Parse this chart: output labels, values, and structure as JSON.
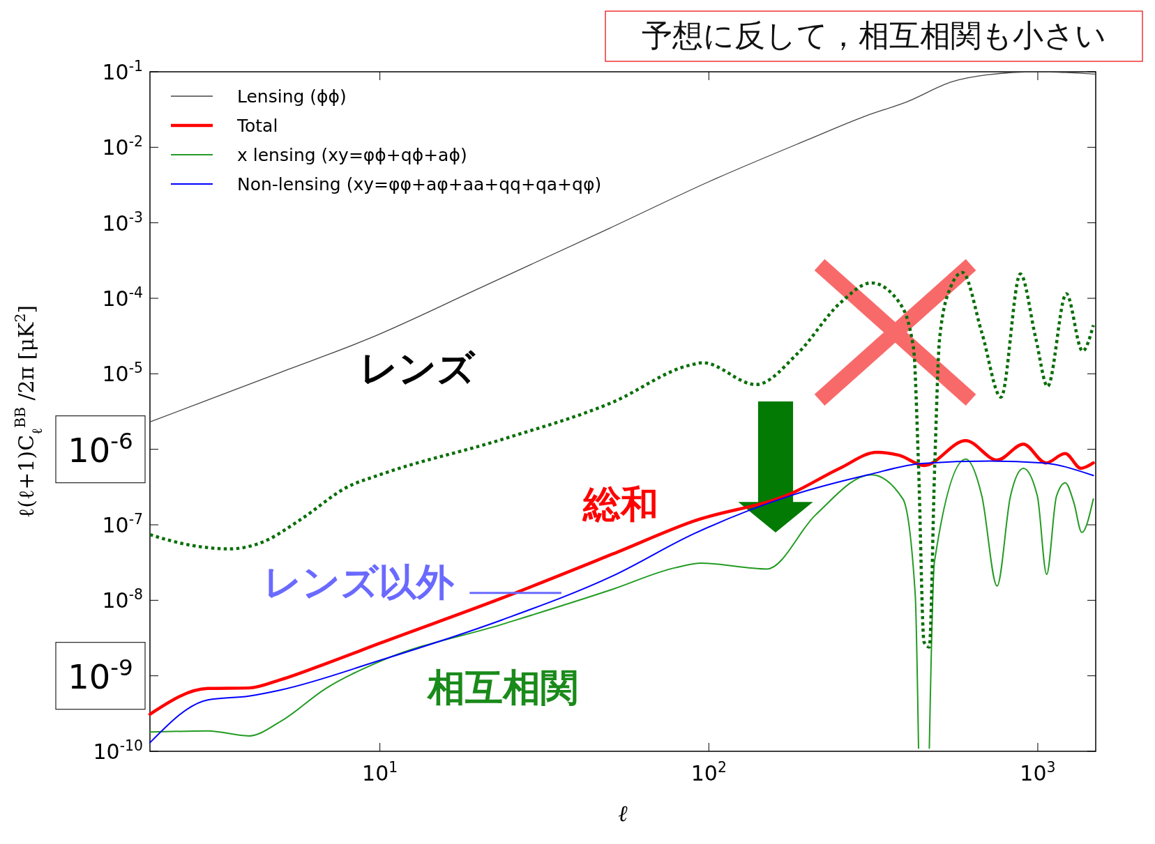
{
  "chart_data": {
    "type": "line",
    "xlabel": "ℓ",
    "ylabel": "ℓ(ℓ+1)C$_{ℓ}$$^{BB}$ /2π [μK$^{2}$]",
    "log": "xy",
    "xlim": [
      2,
      1500
    ],
    "ylim": [
      1e-10,
      0.1
    ],
    "xticks": [
      {
        "value": 10,
        "label": "10$^{1}$"
      },
      {
        "value": 100,
        "label": "10$^{2}$"
      },
      {
        "value": 1000,
        "label": "10$^{3}$"
      }
    ],
    "yticks": [
      {
        "value": 1e-10,
        "label": "10$^{-10}$"
      },
      {
        "value": 1e-09,
        "label": null
      },
      {
        "value": 1e-08,
        "label": "10$^{-8}$"
      },
      {
        "value": 1e-07,
        "label": "10$^{-7}$"
      },
      {
        "value": 1e-06,
        "label": null
      },
      {
        "value": 1e-05,
        "label": "10$^{-5}$"
      },
      {
        "value": 0.0001,
        "label": "10$^{-4}$"
      },
      {
        "value": 0.001,
        "label": "10$^{-3}$"
      },
      {
        "value": 0.01,
        "label": "10$^{-2}$"
      },
      {
        "value": 0.1,
        "label": "10$^{-1}$"
      }
    ],
    "legend": "top left",
    "grid": false,
    "series": [
      {
        "name": "Lensing (ϕϕ)",
        "color": "#444444",
        "x": [
          2,
          3,
          5,
          9.3,
          20,
          50,
          100,
          200,
          300,
          400,
          550,
          700,
          1000,
          1500
        ],
        "values": [
          2.3e-06,
          4.5e-06,
          1.05e-05,
          2.95e-05,
          0.000135,
          0.00085,
          0.0035,
          0.0126,
          0.026,
          0.04,
          0.074,
          0.091,
          0.1,
          0.093
        ]
      },
      {
        "name": "Total",
        "color": "#ff0000",
        "x": [
          2,
          3,
          4,
          5,
          7,
          10,
          23.5,
          51,
          90,
          178,
          250,
          324,
          380,
          451,
          604,
          753,
          904,
          1059,
          1212,
          1352,
          1475
        ],
        "values": [
          3.1e-10,
          6.8e-10,
          6.9e-10,
          8.9e-10,
          1.5e-09,
          2.7e-09,
          1.07e-08,
          4.1e-08,
          1.12e-07,
          2.6e-07,
          5.6e-07,
          9.1e-07,
          8.3e-07,
          6.1e-07,
          1.3e-06,
          7.2e-07,
          1.17e-06,
          6.6e-07,
          8.8e-07,
          5.6e-07,
          6.6e-07
        ]
      },
      {
        "name": "x lensing (xy=φϕ+qϕ+aϕ)",
        "color": "#239b23",
        "x": [
          2,
          3,
          4,
          5,
          6.85,
          10,
          23.5,
          51,
          79,
          95,
          150,
          211,
          312,
          389,
          424,
          434,
          450,
          468,
          485,
          604,
          676,
          752,
          826,
          904,
          997,
          1064,
          1140,
          1212,
          1288,
          1361,
          1475
        ],
        "values": [
          1.8e-10,
          1.86e-10,
          1.6e-10,
          2.5e-10,
          6.8e-10,
          1.55e-09,
          4.8e-09,
          1.4e-08,
          2.7e-08,
          3.1e-08,
          2.6e-08,
          1.35e-07,
          4.6e-07,
          2.2e-07,
          1.2e-08,
          1.1e-10,
          null,
          1.1e-10,
          3.2e-08,
          7.4e-07,
          2.4e-07,
          1.55e-08,
          2.4e-07,
          5.6e-07,
          2.4e-07,
          2.2e-08,
          2.4e-07,
          3.6e-07,
          1.95e-07,
          7.9e-08,
          2.2e-07
        ]
      },
      {
        "name": "Non-lensing (xy=φφ+aφ+aa+qq+qa+qφ)",
        "color": "#0000ff",
        "x": [
          2,
          3,
          4,
          5,
          10,
          23.5,
          51,
          90,
          178,
          305,
          445,
          718,
          1035,
          1475
        ],
        "values": [
          1.3e-10,
          4.8e-10,
          5.4e-10,
          6.5e-10,
          1.6e-09,
          5.5e-09,
          2.1e-08,
          7.6e-08,
          2.45e-07,
          4.6e-07,
          6.5e-07,
          7e-07,
          6.6e-07,
          4.5e-07
        ]
      },
      {
        "color": "#0a6e0a",
        "line_style": "dotted",
        "x": [
          2,
          2.64,
          3.5,
          4.4,
          5.7,
          8,
          10,
          23.5,
          51,
          87.5,
          96,
          139,
          187,
          251,
          312,
          380,
          419,
          434,
          451,
          468,
          486,
          503,
          543,
          590,
          676,
          773,
          885,
          986,
          1071,
          1221,
          1368,
          1475
        ],
        "values": [
          7.4e-08,
          5.4e-08,
          4.8e-08,
          5.9e-08,
          1.15e-07,
          3.2e-07,
          4.6e-07,
          1.35e-06,
          4.2e-06,
          1.3e-05,
          1.4e-05,
          7.2e-06,
          1.9e-05,
          8.7e-05,
          0.00016,
          8.7e-05,
          2.2e-05,
          6e-07,
          2.8e-09,
          2.4e-09,
          6e-07,
          2.95e-05,
          0.00014,
          0.00022,
          3.5e-05,
          4.9e-06,
          0.00021,
          2.95e-05,
          6.8e-06,
          0.000115,
          2e-05,
          4.4e-05
        ]
      }
    ],
    "annotations": [
      "予想に反して，相互相関も小さい",
      "10$^{-6}$",
      "10$^{-9}$",
      "レンズ",
      "総和",
      "レンズ以外",
      "相互相関"
    ]
  }
}
